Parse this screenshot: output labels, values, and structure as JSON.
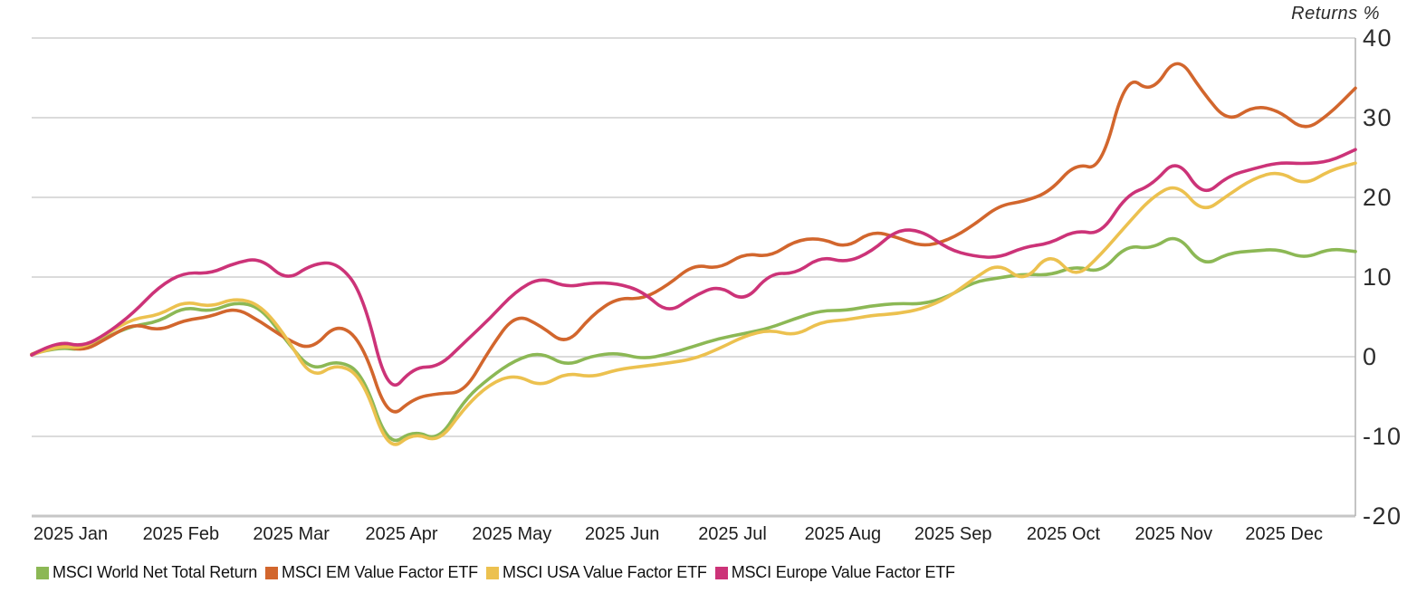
{
  "chart": {
    "title": "Returns %"
  },
  "axes": {
    "y_ticks": [
      40,
      30,
      20,
      10,
      0,
      -10,
      -20
    ],
    "x_labels": [
      "2025 Jan",
      "2025 Feb",
      "2025 Mar",
      "2025 Apr",
      "2025 May",
      "2025 Jun",
      "2025 Jul",
      "2025 Aug",
      "2025 Sep",
      "2025 Oct",
      "2025 Nov",
      "2025 Dec"
    ]
  },
  "legend": [
    {
      "label": "MSCI World Net Total Return",
      "color": "#8cb855"
    },
    {
      "label": "MSCI EM Value Factor ETF",
      "color": "#d2662d"
    },
    {
      "label": "MSCI USA Value Factor ETF",
      "color": "#ecc14f"
    },
    {
      "label": "MSCI Europe Value Factor ETF",
      "color": "#cc3378"
    }
  ],
  "chart_data": {
    "type": "line",
    "title": "Returns %",
    "xlabel": "",
    "ylabel": "Returns %",
    "ylim": [
      -20,
      40
    ],
    "grid": "horizontal",
    "legend_position": "bottom",
    "x_unit": "weekly samples, Jan 2025 - Dec 2025",
    "categories_x": [
      "2025 Jan",
      "2025 Feb",
      "2025 Mar",
      "2025 Apr",
      "2025 May",
      "2025 Jun",
      "2025 Jul",
      "2025 Aug",
      "2025 Sep",
      "2025 Oct",
      "2025 Nov",
      "2025 Dec"
    ],
    "series": [
      {
        "name": "MSCI World Net Total Return",
        "color": "#8cb855",
        "values": [
          0.3,
          1.2,
          0.8,
          2.6,
          3.9,
          4.4,
          6.3,
          5.6,
          6.9,
          6.2,
          2.0,
          -1.8,
          -0.4,
          -2.0,
          -11.4,
          -9.2,
          -10.6,
          -5.4,
          -2.6,
          -0.4,
          0.6,
          -1.2,
          0.1,
          0.5,
          -0.3,
          0.3,
          1.3,
          2.3,
          2.9,
          3.6,
          4.8,
          5.8,
          5.8,
          6.4,
          6.7,
          6.6,
          7.5,
          9.4,
          9.9,
          10.4,
          10.2,
          11.4,
          10.5,
          14.0,
          13.5,
          15.5,
          11.3,
          13.0,
          13.3,
          13.5,
          12.3,
          13.6,
          13.2
        ]
      },
      {
        "name": "MSCI EM Value Factor ETF",
        "color": "#d2662d",
        "values": [
          0.3,
          1.8,
          0.6,
          2.4,
          4.2,
          3.2,
          4.6,
          5.0,
          6.2,
          4.4,
          2.2,
          0.8,
          4.3,
          1.8,
          -8.0,
          -5.2,
          -4.6,
          -4.5,
          1.0,
          5.4,
          3.9,
          1.4,
          5.2,
          7.4,
          7.2,
          9.0,
          11.6,
          11.0,
          13.0,
          12.5,
          14.6,
          14.9,
          13.6,
          15.8,
          15.0,
          13.8,
          14.6,
          16.5,
          19.0,
          19.5,
          20.7,
          24.3,
          23.4,
          35.5,
          33.0,
          38.0,
          33.2,
          29.4,
          31.5,
          30.9,
          28.3,
          30.5,
          33.7
        ]
      },
      {
        "name": "MSCI USA Value Factor ETF",
        "color": "#ecc14f",
        "values": [
          0.2,
          1.4,
          1.0,
          3.0,
          4.8,
          5.2,
          7.0,
          6.2,
          7.4,
          6.5,
          2.5,
          -2.8,
          -0.8,
          -2.6,
          -12.0,
          -9.5,
          -10.8,
          -6.4,
          -3.4,
          -2.2,
          -3.8,
          -2.0,
          -2.6,
          -1.6,
          -1.2,
          -0.8,
          -0.3,
          1.0,
          2.6,
          3.4,
          2.6,
          4.4,
          4.6,
          5.2,
          5.4,
          6.0,
          7.4,
          9.8,
          11.8,
          9.3,
          13.2,
          9.8,
          12.8,
          16.5,
          20.0,
          21.8,
          18.0,
          20.3,
          22.4,
          23.3,
          21.5,
          23.4,
          24.3
        ]
      },
      {
        "name": "MSCI Europe Value Factor ETF",
        "color": "#cc3378",
        "values": [
          0.2,
          2.0,
          1.2,
          3.0,
          5.5,
          8.8,
          10.6,
          10.4,
          11.8,
          12.4,
          9.5,
          11.6,
          11.9,
          8.0,
          -5.0,
          -1.3,
          -1.3,
          1.8,
          4.8,
          8.2,
          10.0,
          8.7,
          9.3,
          9.2,
          8.2,
          5.4,
          7.6,
          9.0,
          6.8,
          10.5,
          10.4,
          12.6,
          11.8,
          13.2,
          16.0,
          15.8,
          13.5,
          12.6,
          12.4,
          13.8,
          14.2,
          15.9,
          15.3,
          20.3,
          21.5,
          25.0,
          20.0,
          22.7,
          23.6,
          24.4,
          24.2,
          24.5,
          26.0
        ]
      }
    ]
  }
}
